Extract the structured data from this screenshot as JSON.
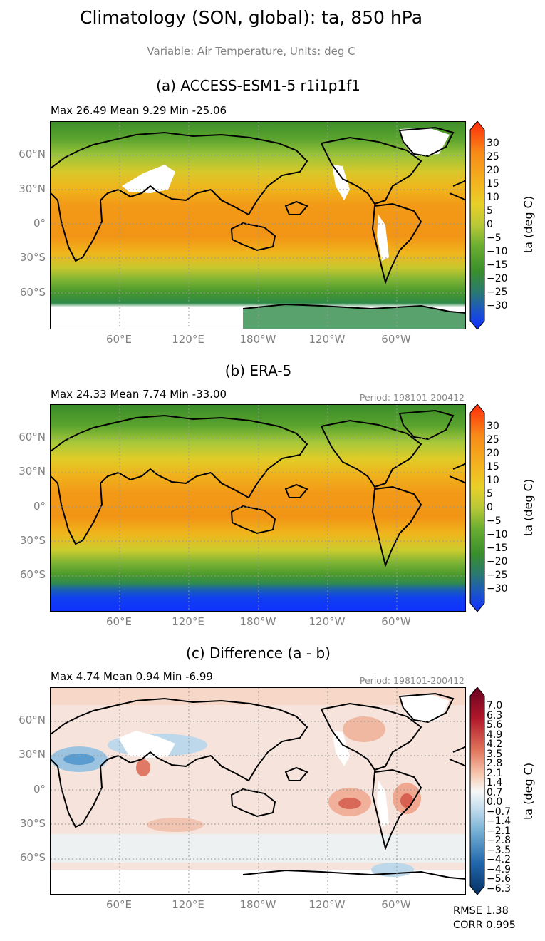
{
  "title": "Climatology (SON, global): ta, 850 hPa",
  "subtitle": "Variable: Air Temperature, Units: deg C",
  "lat_labels": [
    "60°N",
    "30°N",
    "0°",
    "30°S",
    "60°S"
  ],
  "lon_labels": [
    "60°E",
    "120°E",
    "180°W",
    "120°W",
    "60°W"
  ],
  "panels": [
    {
      "title": "(a) ACCESS-ESM1-5 r1i1p1f1",
      "stats": "Max 26.49 Mean 9.29 Min -25.06",
      "period": "",
      "colorbar_label": "ta (deg C)",
      "colorbar_ticks": [
        "30",
        "25",
        "20",
        "15",
        "10",
        "5",
        "0",
        "−5",
        "−10",
        "−15",
        "−20",
        "−25",
        "−30"
      ]
    },
    {
      "title": "(b) ERA-5",
      "stats": "Max 24.33 Mean 7.74 Min -33.00",
      "period": "Period: 198101-200412",
      "colorbar_label": "ta (deg C)",
      "colorbar_ticks": [
        "30",
        "25",
        "20",
        "15",
        "10",
        "5",
        "0",
        "−5",
        "−10",
        "−15",
        "−20",
        "−25",
        "−30"
      ]
    },
    {
      "title": "(c) Difference (a - b)",
      "stats": "Max 4.74 Mean 0.94 Min -6.99",
      "period": "Period: 198101-200412",
      "colorbar_label": "ta (deg C)",
      "colorbar_ticks": [
        "7.0",
        "6.3",
        "5.6",
        "4.9",
        "4.2",
        "3.5",
        "2.8",
        "2.1",
        "1.4",
        "0.7",
        "0.0",
        "−0.7",
        "−1.4",
        "−2.1",
        "−2.8",
        "−3.5",
        "−4.2",
        "−4.9",
        "−5.6",
        "−6.3"
      ]
    }
  ],
  "metrics": {
    "rmse": "RMSE 1.38",
    "corr": "CORR 0.995"
  },
  "chart_data": [
    {
      "type": "heatmap",
      "title": "(a) ACCESS-ESM1-5 r1i1p1f1",
      "variable": "ta",
      "units": "deg C",
      "stats": {
        "max": 26.49,
        "mean": 9.29,
        "min": -25.06
      },
      "zlim": [
        -33,
        33
      ],
      "colorbar_ticks": [
        30,
        25,
        20,
        15,
        10,
        5,
        0,
        -5,
        -10,
        -15,
        -20,
        -25,
        -30
      ],
      "lat_ticks": [
        60,
        30,
        0,
        -30,
        -60
      ],
      "lon_ticks": [
        60,
        120,
        180,
        -120,
        -60
      ],
      "grid": true
    },
    {
      "type": "heatmap",
      "title": "(b) ERA-5",
      "variable": "ta",
      "units": "deg C",
      "stats": {
        "max": 24.33,
        "mean": 7.74,
        "min": -33.0
      },
      "period": "198101-200412",
      "zlim": [
        -33,
        33
      ],
      "colorbar_ticks": [
        30,
        25,
        20,
        15,
        10,
        5,
        0,
        -5,
        -10,
        -15,
        -20,
        -25,
        -30
      ],
      "lat_ticks": [
        60,
        30,
        0,
        -30,
        -60
      ],
      "lon_ticks": [
        60,
        120,
        180,
        -120,
        -60
      ],
      "grid": true
    },
    {
      "type": "heatmap",
      "title": "(c) Difference (a - b)",
      "variable": "ta",
      "units": "deg C",
      "stats": {
        "max": 4.74,
        "mean": 0.94,
        "min": -6.99,
        "rmse": 1.38,
        "corr": 0.995
      },
      "period": "198101-200412",
      "zlim": [
        -7,
        7
      ],
      "colorbar_ticks": [
        7.0,
        6.3,
        5.6,
        4.9,
        4.2,
        3.5,
        2.8,
        2.1,
        1.4,
        0.7,
        0.0,
        -0.7,
        -1.4,
        -2.1,
        -2.8,
        -3.5,
        -4.2,
        -4.9,
        -5.6,
        -6.3
      ],
      "lat_ticks": [
        60,
        30,
        0,
        -30,
        -60
      ],
      "lon_ticks": [
        60,
        120,
        180,
        -120,
        -60
      ],
      "grid": true
    }
  ]
}
